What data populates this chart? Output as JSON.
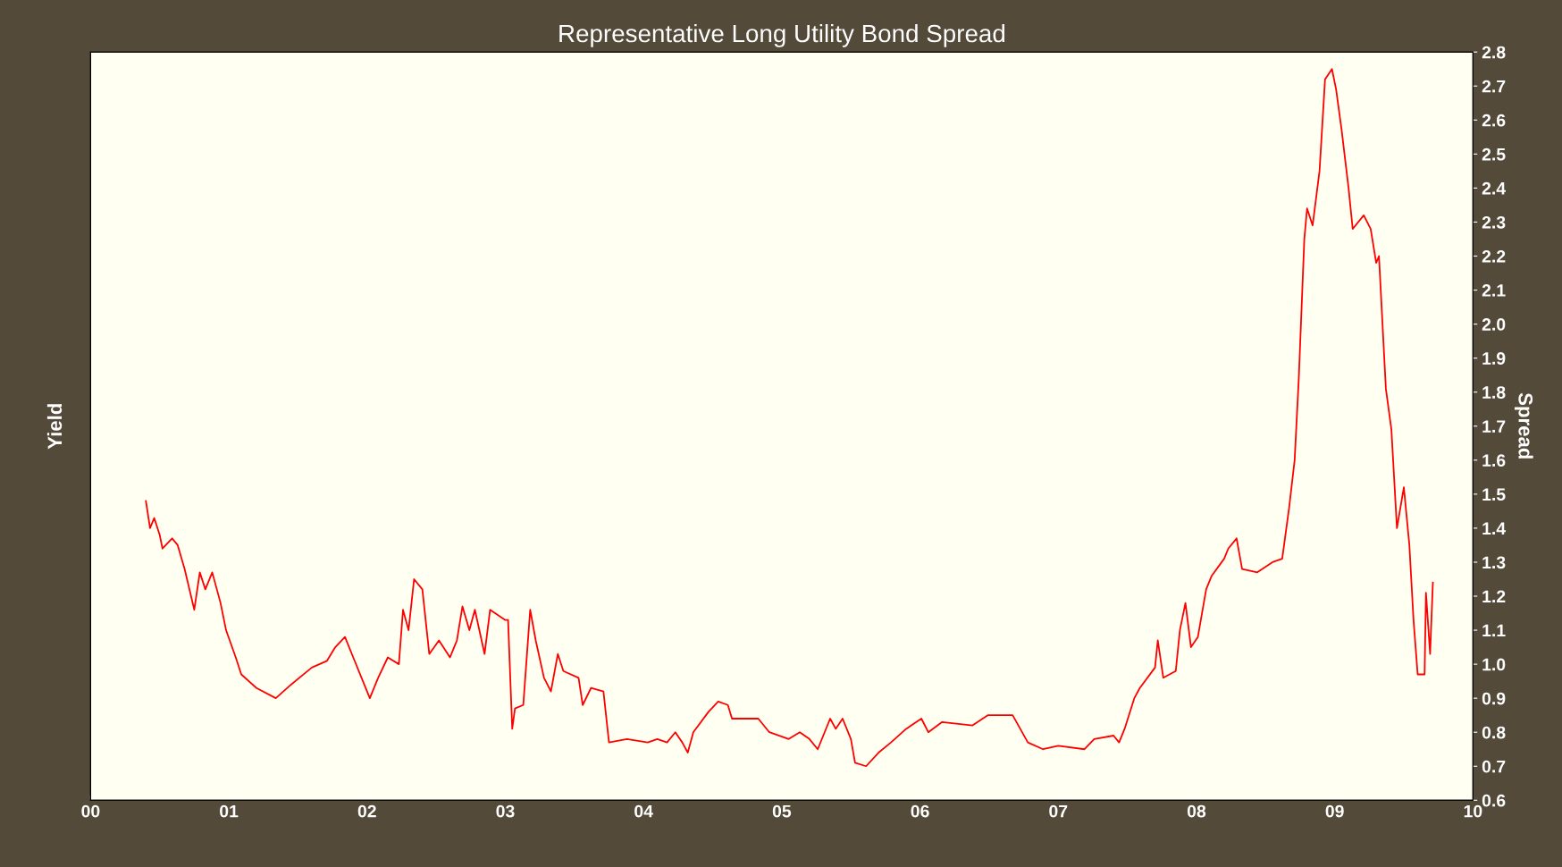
{
  "chart_data": {
    "type": "line",
    "title": "Representative Long Utility Bond Spread",
    "ylabel": "Yield",
    "y2label": "Spread",
    "xlim": [
      0,
      10
    ],
    "xticks": [
      {
        "value": 0,
        "label": "00"
      },
      {
        "value": 1,
        "label": "01"
      },
      {
        "value": 2,
        "label": "02"
      },
      {
        "value": 3,
        "label": "03"
      },
      {
        "value": 4,
        "label": "04"
      },
      {
        "value": 5,
        "label": "05"
      },
      {
        "value": 6,
        "label": "06"
      },
      {
        "value": 7,
        "label": "07"
      },
      {
        "value": 8,
        "label": "08"
      },
      {
        "value": 9,
        "label": "09"
      },
      {
        "value": 10,
        "label": "10"
      }
    ],
    "y2lim": [
      0.6,
      2.8
    ],
    "y2ticks": [
      {
        "value": 0.6,
        "label": "0.6"
      },
      {
        "value": 0.7,
        "label": "0.7"
      },
      {
        "value": 0.8,
        "label": "0.8"
      },
      {
        "value": 0.9,
        "label": "0.9"
      },
      {
        "value": 1.0,
        "label": "1.0"
      },
      {
        "value": 1.1,
        "label": "1.1"
      },
      {
        "value": 1.2,
        "label": "1.2"
      },
      {
        "value": 1.3,
        "label": "1.3"
      },
      {
        "value": 1.4,
        "label": "1.4"
      },
      {
        "value": 1.5,
        "label": "1.5"
      },
      {
        "value": 1.6,
        "label": "1.6"
      },
      {
        "value": 1.7,
        "label": "1.7"
      },
      {
        "value": 1.8,
        "label": "1.8"
      },
      {
        "value": 1.9,
        "label": "1.9"
      },
      {
        "value": 2.0,
        "label": "2.0"
      },
      {
        "value": 2.1,
        "label": "2.1"
      },
      {
        "value": 2.2,
        "label": "2.2"
      },
      {
        "value": 2.3,
        "label": "2.3"
      },
      {
        "value": 2.4,
        "label": "2.4"
      },
      {
        "value": 2.5,
        "label": "2.5"
      },
      {
        "value": 2.6,
        "label": "2.6"
      },
      {
        "value": 2.7,
        "label": "2.7"
      },
      {
        "value": 2.8,
        "label": "2.8"
      }
    ],
    "grid": false,
    "legend": false,
    "marker": "none",
    "line_style": "solid",
    "series": [
      {
        "color": "#ff0000",
        "axis": "y2",
        "x": [
          0.4,
          0.43,
          0.46,
          0.5,
          0.52,
          0.59,
          0.63,
          0.68,
          0.75,
          0.79,
          0.83,
          0.88,
          0.94,
          0.98,
          1.05,
          1.09,
          1.2,
          1.34,
          1.45,
          1.6,
          1.71,
          1.77,
          1.84,
          1.9,
          2.02,
          2.08,
          2.15,
          2.23,
          2.26,
          2.3,
          2.34,
          2.4,
          2.45,
          2.52,
          2.6,
          2.65,
          2.69,
          2.74,
          2.78,
          2.85,
          2.89,
          3.0,
          3.02,
          3.05,
          3.07,
          3.13,
          3.18,
          3.22,
          3.28,
          3.33,
          3.38,
          3.42,
          3.53,
          3.56,
          3.62,
          3.71,
          3.75,
          3.88,
          4.03,
          4.1,
          4.17,
          4.23,
          4.28,
          4.32,
          4.36,
          4.47,
          4.54,
          4.61,
          4.64,
          4.83,
          4.91,
          5.05,
          5.13,
          5.2,
          5.26,
          5.35,
          5.39,
          5.44,
          5.5,
          5.53,
          5.61,
          5.7,
          5.79,
          5.9,
          6.01,
          6.06,
          6.16,
          6.38,
          6.49,
          6.67,
          6.78,
          6.89,
          7.0,
          7.19,
          7.26,
          7.4,
          7.44,
          7.48,
          7.55,
          7.59,
          7.7,
          7.72,
          7.76,
          7.85,
          7.88,
          7.92,
          7.96,
          8.01,
          8.07,
          8.11,
          8.2,
          8.23,
          8.29,
          8.33,
          8.44,
          8.55,
          8.62,
          8.67,
          8.71,
          8.74,
          8.78,
          8.8,
          8.84,
          8.89,
          8.93,
          8.98,
          9.01,
          9.05,
          9.1,
          9.13,
          9.21,
          9.26,
          9.3,
          9.32,
          9.37,
          9.41,
          9.45,
          9.5,
          9.54,
          9.57,
          9.6,
          9.65,
          9.66,
          9.69,
          9.71
        ],
        "values": [
          1.48,
          1.4,
          1.43,
          1.38,
          1.34,
          1.37,
          1.35,
          1.28,
          1.16,
          1.27,
          1.22,
          1.27,
          1.18,
          1.1,
          1.02,
          0.97,
          0.93,
          0.9,
          0.94,
          0.99,
          1.01,
          1.05,
          1.08,
          1.02,
          0.9,
          0.96,
          1.02,
          1.0,
          1.16,
          1.1,
          1.25,
          1.22,
          1.03,
          1.07,
          1.02,
          1.07,
          1.17,
          1.1,
          1.16,
          1.03,
          1.16,
          1.13,
          1.13,
          0.81,
          0.87,
          0.88,
          1.16,
          1.07,
          0.96,
          0.92,
          1.03,
          0.98,
          0.96,
          0.88,
          0.93,
          0.92,
          0.77,
          0.78,
          0.77,
          0.78,
          0.77,
          0.8,
          0.77,
          0.74,
          0.8,
          0.86,
          0.89,
          0.88,
          0.84,
          0.84,
          0.8,
          0.78,
          0.8,
          0.78,
          0.75,
          0.84,
          0.81,
          0.84,
          0.78,
          0.71,
          0.7,
          0.74,
          0.77,
          0.81,
          0.84,
          0.8,
          0.83,
          0.82,
          0.85,
          0.85,
          0.77,
          0.75,
          0.76,
          0.75,
          0.78,
          0.79,
          0.77,
          0.81,
          0.9,
          0.93,
          0.99,
          1.07,
          0.96,
          0.98,
          1.1,
          1.18,
          1.05,
          1.08,
          1.22,
          1.26,
          1.31,
          1.34,
          1.37,
          1.28,
          1.27,
          1.3,
          1.31,
          1.46,
          1.6,
          1.84,
          2.25,
          2.34,
          2.29,
          2.45,
          2.72,
          2.75,
          2.69,
          2.57,
          2.4,
          2.28,
          2.32,
          2.28,
          2.18,
          2.2,
          1.81,
          1.69,
          1.4,
          1.52,
          1.35,
          1.13,
          0.97,
          0.97,
          1.21,
          1.03,
          1.24
        ]
      }
    ]
  }
}
